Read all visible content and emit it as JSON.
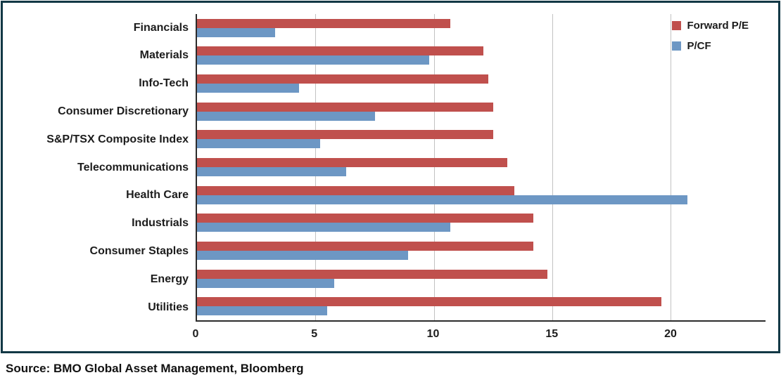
{
  "source": "Source: BMO Global Asset Management, Bloomberg",
  "colors": {
    "frame_border": "#123845",
    "forward_pe": "#C0504D",
    "pcf": "#6D97C4",
    "gridline": "#C2C2C2",
    "axis": "#2B2B2B"
  },
  "chart_data": {
    "type": "bar",
    "orientation": "horizontal",
    "title": "",
    "xlabel": "",
    "ylabel": "",
    "categories": [
      "Financials",
      "Materials",
      "Info-Tech",
      "Consumer Discretionary",
      "S&P/TSX Composite Index",
      "Telecommunications",
      "Health Care",
      "Industrials",
      "Consumer Staples",
      "Energy",
      "Utilities"
    ],
    "series": [
      {
        "name": "Forward P/E",
        "color": "#C0504D",
        "values": [
          10.7,
          12.1,
          12.3,
          12.5,
          12.5,
          13.1,
          13.4,
          14.2,
          14.2,
          14.8,
          19.6
        ]
      },
      {
        "name": "P/CF",
        "color": "#6D97C4",
        "values": [
          3.3,
          9.8,
          4.3,
          7.5,
          5.2,
          6.3,
          20.7,
          10.7,
          8.9,
          5.8,
          5.5
        ]
      }
    ],
    "xlim": [
      0,
      24
    ],
    "xticks": [
      0,
      5,
      10,
      15,
      20
    ],
    "grid": "vertical",
    "legend_position": "top-right"
  }
}
